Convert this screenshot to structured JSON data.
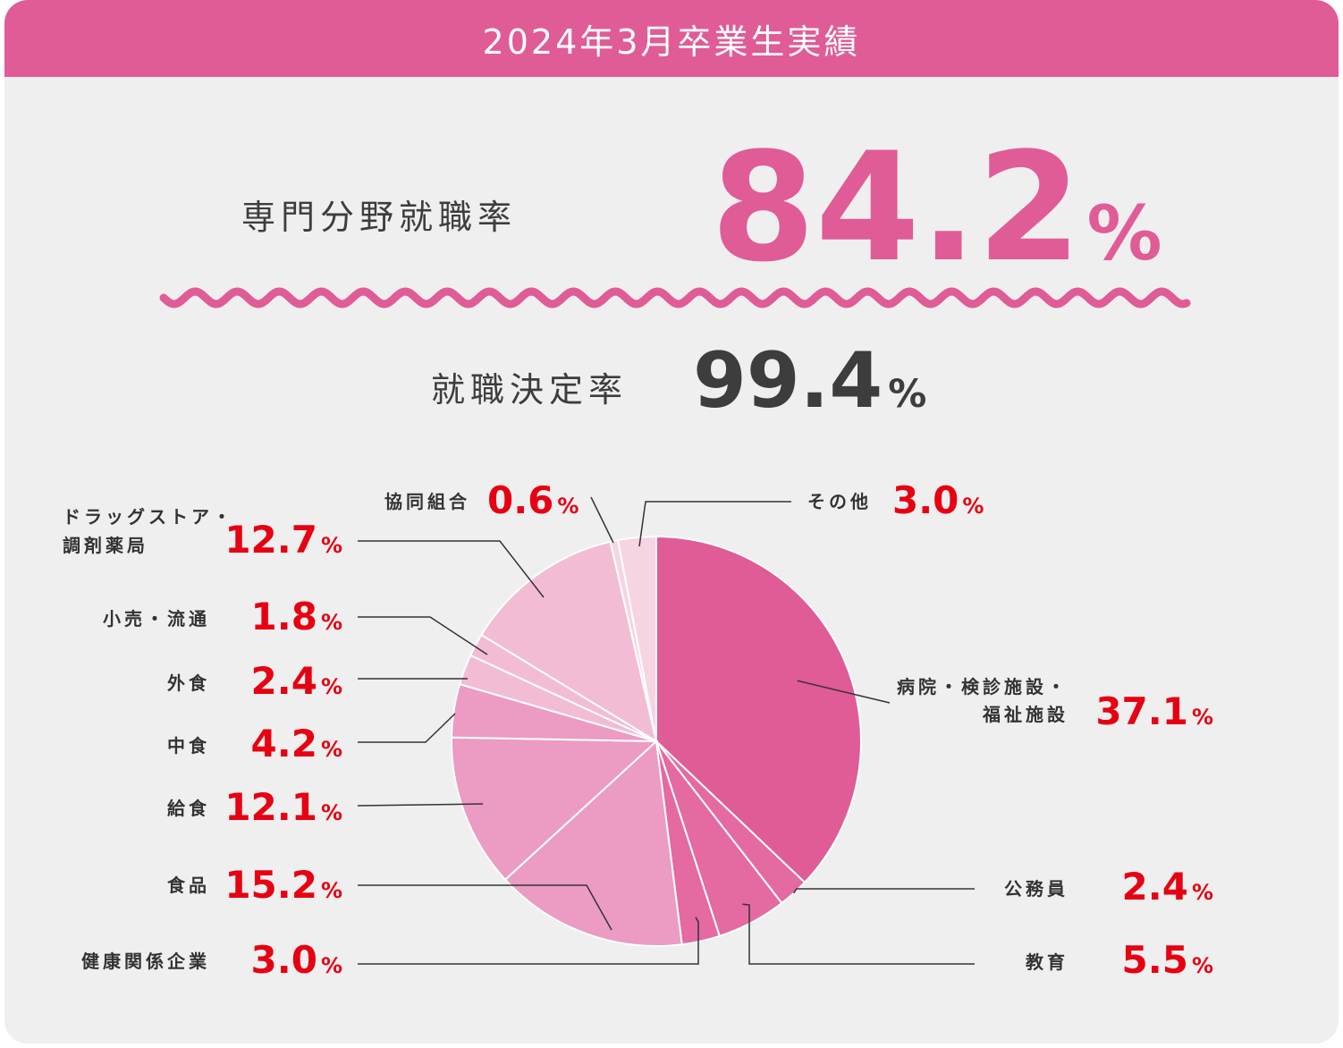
{
  "header": {
    "title": "2024年3月卒業生実績"
  },
  "specialty_rate": {
    "label": "専門分野就職率",
    "value": "84.2",
    "unit": "%"
  },
  "employment_rate": {
    "label": "就職決定率",
    "value": "99.4",
    "unit": "%"
  },
  "colors": {
    "brand": "#e05c96",
    "accent_value": "#e60012",
    "dark_value": "#3d3d3d",
    "background": "#f0efef"
  },
  "chart_data": {
    "type": "pie",
    "unit": "%",
    "slices": [
      {
        "key": "hospital",
        "label_lines": [
          "病院・検診施設・",
          "福祉施設"
        ],
        "value": 37.1,
        "display": "37.1",
        "color": "#e05c96"
      },
      {
        "key": "civil",
        "label_lines": [
          "公務員"
        ],
        "value": 2.4,
        "display": "2.4",
        "color": "#e46aa1"
      },
      {
        "key": "education",
        "label_lines": [
          "教育"
        ],
        "value": 5.5,
        "display": "5.5",
        "color": "#e46aa1"
      },
      {
        "key": "health",
        "label_lines": [
          "健康関係企業"
        ],
        "value": 3.0,
        "display": "3.0",
        "color": "#e46aa1"
      },
      {
        "key": "food",
        "label_lines": [
          "食品"
        ],
        "value": 15.2,
        "display": "15.2",
        "color": "#ec9bc2"
      },
      {
        "key": "catering",
        "label_lines": [
          "給食"
        ],
        "value": 12.1,
        "display": "12.1",
        "color": "#ec9bc2"
      },
      {
        "key": "deli",
        "label_lines": [
          "中食"
        ],
        "value": 4.2,
        "display": "4.2",
        "color": "#ec9bc2"
      },
      {
        "key": "dining",
        "label_lines": [
          "外食"
        ],
        "value": 2.4,
        "display": "2.4",
        "color": "#f2bcd5"
      },
      {
        "key": "retail",
        "label_lines": [
          "小売・流通"
        ],
        "value": 1.8,
        "display": "1.8",
        "color": "#f2bcd5"
      },
      {
        "key": "drugstore",
        "label_lines": [
          "ドラッグストア・",
          "調剤薬局"
        ],
        "value": 12.7,
        "display": "12.7",
        "color": "#f2bcd5"
      },
      {
        "key": "coop",
        "label_lines": [
          "協同組合"
        ],
        "value": 0.6,
        "display": "0.6",
        "color": "#f6d4e3"
      },
      {
        "key": "other",
        "label_lines": [
          "その他"
        ],
        "value": 3.0,
        "display": "3.0",
        "color": "#f6d4e3"
      }
    ]
  }
}
